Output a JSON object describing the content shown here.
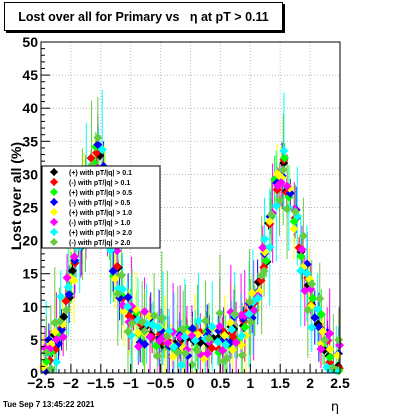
{
  "chart_data": {
    "type": "scatter",
    "title": "Lost over all for Primary vs   η at pT > 0.11",
    "xlabel": "η",
    "ylabel": "Lost over all (%)",
    "xlim": [
      -2.5,
      2.5
    ],
    "ylim": [
      0,
      50
    ],
    "x_ticks": [
      "−2.5",
      "−2",
      "−1.5",
      "−1",
      "−0.5",
      "0",
      "0.5",
      "1",
      "1.5",
      "2",
      "2.5"
    ],
    "y_ticks": [
      "0",
      "5",
      "10",
      "15",
      "20",
      "25",
      "30",
      "35",
      "40",
      "45",
      "50"
    ],
    "grid": true,
    "legend_position": "left",
    "series": [
      {
        "name": "(+) with pT/|q| > 0.1",
        "color": "#000000"
      },
      {
        "name": "(-) with pT/|q| > 0.1",
        "color": "#ff0000"
      },
      {
        "name": "(+) with pT/|q| > 0.5",
        "color": "#00ff00"
      },
      {
        "name": "(-) with pT/|q| > 0.5",
        "color": "#0000ff"
      },
      {
        "name": "(+) with pT/|q| > 1.0",
        "color": "#ffff00"
      },
      {
        "name": "(-) with pT/|q| > 1.0",
        "color": "#ff00ff"
      },
      {
        "name": "(+) with pT/|q| > 2.0",
        "color": "#00ffff"
      },
      {
        "name": "(-) with pT/|q| > 2.0",
        "color": "#66cc44"
      }
    ],
    "profile": {
      "x": [
        -2.45,
        -2.35,
        -2.25,
        -2.15,
        -2.05,
        -1.95,
        -1.85,
        -1.75,
        -1.65,
        -1.55,
        -1.45,
        -1.35,
        -1.25,
        -1.15,
        -1.05,
        -0.95,
        -0.85,
        -0.75,
        -0.65,
        -0.55,
        -0.45,
        -0.35,
        -0.25,
        -0.15,
        -0.05,
        0.05,
        0.15,
        0.25,
        0.35,
        0.45,
        0.55,
        0.65,
        0.75,
        0.85,
        0.95,
        1.05,
        1.15,
        1.25,
        1.35,
        1.45,
        1.55,
        1.65,
        1.75,
        1.85,
        1.95,
        2.05,
        2.15,
        2.25,
        2.35,
        2.45
      ],
      "y": [
        1,
        3,
        5,
        8,
        12,
        16,
        20,
        26,
        31,
        33,
        30,
        22,
        16,
        12,
        10,
        8,
        7,
        6.5,
        6,
        5.5,
        5,
        5,
        5,
        5,
        5,
        5,
        5,
        5,
        5,
        5,
        5.5,
        6,
        6.5,
        7,
        8,
        10,
        13,
        17,
        23,
        29,
        31,
        28,
        23,
        18,
        14,
        10,
        7,
        4,
        2.5,
        1
      ]
    }
  },
  "date_stamp": "Tue Sep  7 13:45:22 2021"
}
